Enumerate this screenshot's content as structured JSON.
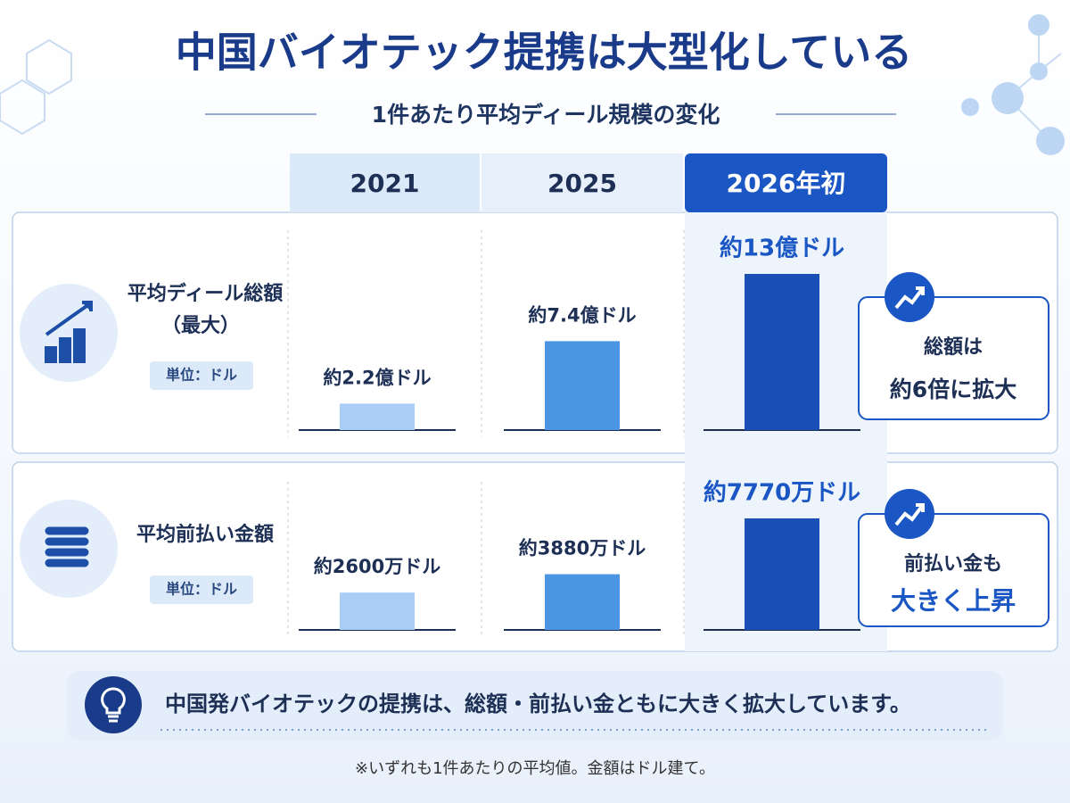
{
  "header": {
    "title": "中国バイオテック提携は大型化している",
    "subtitle": "1件あたり平均ディール規模の変化"
  },
  "columns": [
    "2021",
    "2025",
    "2026年初"
  ],
  "chart_data": [
    {
      "type": "bar",
      "title": "平均ディール総額",
      "subtitle": "（最大）",
      "unit_label": "単位：ドル",
      "values": [
        2.2,
        7.4,
        13
      ],
      "value_labels": [
        "約2.2億ドル",
        "約7.4億ドル",
        "約13億ドル"
      ],
      "colors": [
        "#a9cdf4",
        "#4b95e3",
        "#1a4fb8"
      ],
      "callout": [
        "総額は",
        "約6倍に拡大"
      ]
    },
    {
      "type": "bar",
      "title": "平均前払い金額",
      "unit_label": "単位：ドル",
      "values": [
        2600,
        3880,
        7770
      ],
      "value_labels": [
        "約2600万ドル",
        "約3880万ドル",
        "約7770万ドル"
      ],
      "colors": [
        "#a9cdf4",
        "#4b95e3",
        "#1a4fb8"
      ],
      "callout": [
        "前払い金も",
        "大きく上昇"
      ]
    }
  ],
  "message": "中国発バイオテックの提携は、総額・前払い金ともに大きく拡大しています。",
  "note": "※いずれも1件あたりの平均値。金額はドル建て。"
}
